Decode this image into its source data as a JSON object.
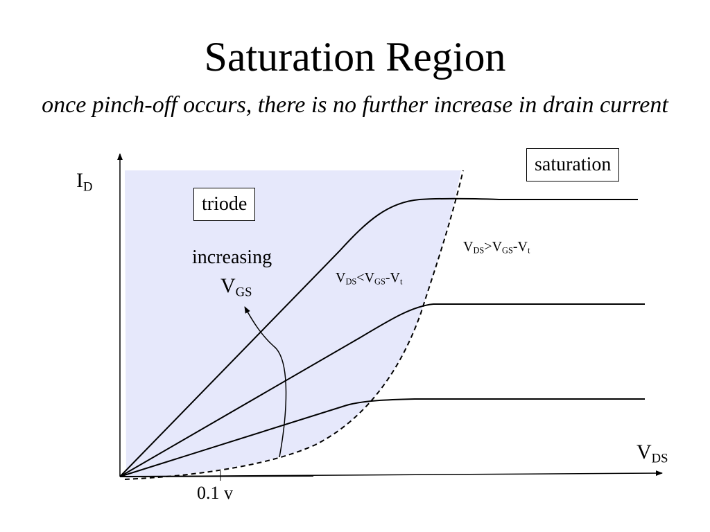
{
  "title": "Saturation Region",
  "subtitle": "once pinch-off occurs, there is no further increase in drain current",
  "axes": {
    "y": {
      "main": "I",
      "sub": "D"
    },
    "x": {
      "main": "V",
      "sub": "DS"
    },
    "tick": "0.1 v"
  },
  "regions": {
    "triode": "triode",
    "saturation": "saturation"
  },
  "annotations": {
    "increasing": "increasing",
    "vgs": {
      "main": "V",
      "sub": "GS"
    },
    "triode_condition": {
      "v": "V",
      "ds": "DS",
      "op": "<",
      "v2": "V",
      "gs": "GS",
      "minus": "-V",
      "t": "t"
    },
    "saturation_condition": {
      "v": "V",
      "ds": "DS",
      "op": ">",
      "v2": "V",
      "gs": "GS",
      "minus": "-V",
      "t": "t"
    }
  },
  "colors": {
    "triode_fill": "#e6e8fb",
    "line": "#000000"
  }
}
